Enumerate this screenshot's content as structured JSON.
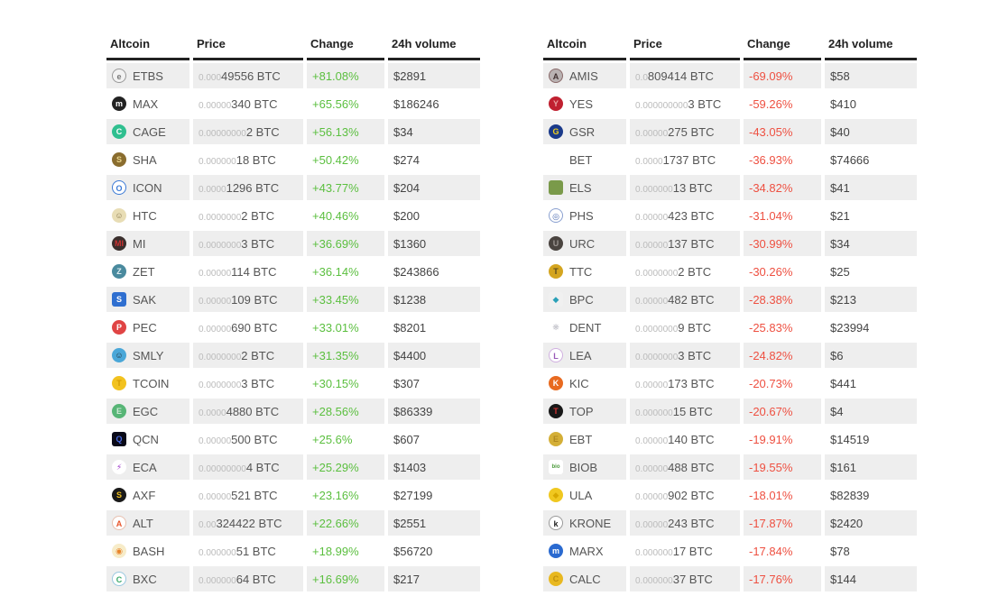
{
  "colors": {
    "positive": "#5bbf3f",
    "negative": "#ee5041",
    "stripe": "#eeeeee",
    "header_border": "#222222",
    "price_prefix": "#bbbbbb",
    "text": "#555555"
  },
  "tables": [
    {
      "id": "gainers-table",
      "headers": [
        "Altcoin",
        "Price",
        "Change",
        "24h volume"
      ],
      "rows": [
        {
          "coin": "ETBS",
          "icon": {
            "letter": "e",
            "bg": "#f2f2f2",
            "fg": "#777777",
            "shape": "circle",
            "border": "#999999"
          },
          "price_prefix": "0.000",
          "price_main": "49556 BTC",
          "change": "+81.08%",
          "direction": "up",
          "volume": "$2891"
        },
        {
          "coin": "MAX",
          "icon": {
            "letter": "m",
            "bg": "#222222",
            "fg": "#ffffff",
            "shape": "circle"
          },
          "price_prefix": "0.00000",
          "price_main": "340 BTC",
          "change": "+65.56%",
          "direction": "up",
          "volume": "$186246"
        },
        {
          "coin": "CAGE",
          "icon": {
            "letter": "C",
            "bg": "#2fbf8f",
            "fg": "#ffffff",
            "shape": "circle"
          },
          "price_prefix": "0.00000000",
          "price_main": "2 BTC",
          "change": "+56.13%",
          "direction": "up",
          "volume": "$34"
        },
        {
          "coin": "SHA",
          "icon": {
            "letter": "S",
            "bg": "#8a6d2f",
            "fg": "#e8d48a",
            "shape": "circle"
          },
          "price_prefix": "0.000000",
          "price_main": "18 BTC",
          "change": "+50.42%",
          "direction": "up",
          "volume": "$274"
        },
        {
          "coin": "ICON",
          "icon": {
            "letter": "O",
            "bg": "#ffffff",
            "fg": "#3b7ad6",
            "shape": "circle",
            "border": "#3b7ad6"
          },
          "price_prefix": "0.0000",
          "price_main": "1296 BTC",
          "change": "+43.77%",
          "direction": "up",
          "volume": "$204"
        },
        {
          "coin": "HTC",
          "icon": {
            "letter": "☺",
            "bg": "#e8ddb5",
            "fg": "#8a7a50",
            "shape": "circle"
          },
          "price_prefix": "0.0000000",
          "price_main": "2 BTC",
          "change": "+40.46%",
          "direction": "up",
          "volume": "$200"
        },
        {
          "coin": "MI",
          "icon": {
            "letter": "MI",
            "bg": "#3a2f2d",
            "fg": "#cc3333",
            "shape": "circle"
          },
          "price_prefix": "0.0000000",
          "price_main": "3 BTC",
          "change": "+36.69%",
          "direction": "up",
          "volume": "$1360"
        },
        {
          "coin": "ZET",
          "icon": {
            "letter": "Z",
            "bg": "#4a8a9e",
            "fg": "#dfeef2",
            "shape": "circle"
          },
          "price_prefix": "0.00000",
          "price_main": "114 BTC",
          "change": "+36.14%",
          "direction": "up",
          "volume": "$243866"
        },
        {
          "coin": "SAK",
          "icon": {
            "letter": "S",
            "bg": "#2f6fd0",
            "fg": "#ffffff",
            "shape": "square"
          },
          "price_prefix": "0.00000",
          "price_main": "109 BTC",
          "change": "+33.45%",
          "direction": "up",
          "volume": "$1238"
        },
        {
          "coin": "PEC",
          "icon": {
            "letter": "P",
            "bg": "#e04444",
            "fg": "#ffffff",
            "shape": "circle"
          },
          "price_prefix": "0.00000",
          "price_main": "690 BTC",
          "change": "+33.01%",
          "direction": "up",
          "volume": "$8201"
        },
        {
          "coin": "SMLY",
          "icon": {
            "letter": "☺",
            "bg": "#4aa7d8",
            "fg": "#22303a",
            "shape": "circle"
          },
          "price_prefix": "0.0000000",
          "price_main": "2 BTC",
          "change": "+31.35%",
          "direction": "up",
          "volume": "$4400"
        },
        {
          "coin": "TCOIN",
          "icon": {
            "letter": "T",
            "bg": "#f2c21f",
            "fg": "#d49a00",
            "shape": "circle"
          },
          "price_prefix": "0.0000000",
          "price_main": "3 BTC",
          "change": "+30.15%",
          "direction": "up",
          "volume": "$307"
        },
        {
          "coin": "EGC",
          "icon": {
            "letter": "E",
            "bg": "#57b576",
            "fg": "#cfe9d6",
            "shape": "circle"
          },
          "price_prefix": "0.0000",
          "price_main": "4880 BTC",
          "change": "+28.56%",
          "direction": "up",
          "volume": "$86339"
        },
        {
          "coin": "QCN",
          "icon": {
            "letter": "Q",
            "bg": "#0a0a18",
            "fg": "#4a6ae0",
            "shape": "square"
          },
          "price_prefix": "0.00000",
          "price_main": "500 BTC",
          "change": "+25.6%",
          "direction": "up",
          "volume": "$607"
        },
        {
          "coin": "ECA",
          "icon": {
            "letter": "⚡",
            "bg": "#ffffff",
            "fg": "#9b30c8",
            "shape": "circle"
          },
          "price_prefix": "0.00000000",
          "price_main": "4 BTC",
          "change": "+25.29%",
          "direction": "up",
          "volume": "$1403"
        },
        {
          "coin": "AXF",
          "icon": {
            "letter": "S",
            "bg": "#1a1a1a",
            "fg": "#f0c020",
            "shape": "circle"
          },
          "price_prefix": "0.00000",
          "price_main": "521 BTC",
          "change": "+23.16%",
          "direction": "up",
          "volume": "$27199"
        },
        {
          "coin": "ALT",
          "icon": {
            "letter": "A",
            "bg": "#ffffff",
            "fg": "#e8542a",
            "shape": "circle",
            "border": "#e8c0b0"
          },
          "price_prefix": "0.00",
          "price_main": "324422 BTC",
          "change": "+22.66%",
          "direction": "up",
          "volume": "$2551"
        },
        {
          "coin": "BASH",
          "icon": {
            "letter": "◉",
            "bg": "#f7ecc9",
            "fg": "#e8842a",
            "shape": "circle"
          },
          "price_prefix": "0.000000",
          "price_main": "51 BTC",
          "change": "+18.99%",
          "direction": "up",
          "volume": "$56720"
        },
        {
          "coin": "BXC",
          "icon": {
            "letter": "C",
            "bg": "#ffffff",
            "fg": "#3aa86a",
            "shape": "circle",
            "border": "#9ac8e0"
          },
          "price_prefix": "0.000000",
          "price_main": "64 BTC",
          "change": "+16.69%",
          "direction": "up",
          "volume": "$217"
        }
      ]
    },
    {
      "id": "losers-table",
      "headers": [
        "Altcoin",
        "Price",
        "Change",
        "24h volume"
      ],
      "rows": [
        {
          "coin": "AMIS",
          "icon": {
            "letter": "A",
            "bg": "#b9b2b2",
            "fg": "#403030",
            "shape": "circle",
            "border": "#8a6a6a"
          },
          "price_prefix": "0.0",
          "price_main": "809414 BTC",
          "change": "-69.09%",
          "direction": "down",
          "volume": "$58"
        },
        {
          "coin": "YES",
          "icon": {
            "letter": "Y",
            "bg": "#c02030",
            "fg": "#e8a0a0",
            "shape": "circle"
          },
          "price_prefix": "0.000000000",
          "price_main": "3 BTC",
          "change": "-59.26%",
          "direction": "down",
          "volume": "$410"
        },
        {
          "coin": "GSR",
          "icon": {
            "letter": "G",
            "bg": "#1a3a8a",
            "fg": "#f0d020",
            "shape": "circle"
          },
          "price_prefix": "0.00000",
          "price_main": "275 BTC",
          "change": "-43.05%",
          "direction": "down",
          "volume": "$40"
        },
        {
          "coin": "BET",
          "icon": null,
          "price_prefix": "0.0000",
          "price_main": "1737 BTC",
          "change": "-36.93%",
          "direction": "down",
          "volume": "$74666"
        },
        {
          "coin": "ELS",
          "icon": {
            "letter": "",
            "bg": "#7a9a4a",
            "fg": "#e0e8d0",
            "shape": "square"
          },
          "price_prefix": "0.000000",
          "price_main": "13 BTC",
          "change": "-34.82%",
          "direction": "down",
          "volume": "$41"
        },
        {
          "coin": "PHS",
          "icon": {
            "letter": "◎",
            "bg": "#ffffff",
            "fg": "#4a6ab0",
            "shape": "circle",
            "border": "#8aa0d0"
          },
          "price_prefix": "0.00000",
          "price_main": "423 BTC",
          "change": "-31.04%",
          "direction": "down",
          "volume": "$21"
        },
        {
          "coin": "URC",
          "icon": {
            "letter": "U",
            "bg": "#4a4440",
            "fg": "#9a9490",
            "shape": "circle"
          },
          "price_prefix": "0.00000",
          "price_main": "137 BTC",
          "change": "-30.99%",
          "direction": "down",
          "volume": "$34"
        },
        {
          "coin": "TTC",
          "icon": {
            "letter": "T",
            "bg": "#d4a520",
            "fg": "#5a4a20",
            "shape": "circle"
          },
          "price_prefix": "0.0000000",
          "price_main": "2 BTC",
          "change": "-30.26%",
          "direction": "down",
          "volume": "$25"
        },
        {
          "coin": "BPC",
          "icon": {
            "letter": "◆",
            "bg": "#f0f0f0",
            "fg": "#2aa0b8",
            "shape": "square"
          },
          "price_prefix": "0.00000",
          "price_main": "482 BTC",
          "change": "-28.38%",
          "direction": "down",
          "volume": "$213"
        },
        {
          "coin": "DENT",
          "icon": {
            "letter": "❋",
            "bg": "#ffffff",
            "fg": "#c0c0c8",
            "shape": "circle"
          },
          "price_prefix": "0.0000000",
          "price_main": "9 BTC",
          "change": "-25.83%",
          "direction": "down",
          "volume": "$23994"
        },
        {
          "coin": "LEA",
          "icon": {
            "letter": "L",
            "bg": "#ffffff",
            "fg": "#9a5ab8",
            "shape": "circle",
            "border": "#d0b0e0"
          },
          "price_prefix": "0.0000000",
          "price_main": "3 BTC",
          "change": "-24.82%",
          "direction": "down",
          "volume": "$6"
        },
        {
          "coin": "KIC",
          "icon": {
            "letter": "K",
            "bg": "#e86a20",
            "fg": "#ffffff",
            "shape": "circle"
          },
          "price_prefix": "0.00000",
          "price_main": "173 BTC",
          "change": "-20.73%",
          "direction": "down",
          "volume": "$441"
        },
        {
          "coin": "TOP",
          "icon": {
            "letter": "T",
            "bg": "#181818",
            "fg": "#d03030",
            "shape": "circle"
          },
          "price_prefix": "0.000000",
          "price_main": "15 BTC",
          "change": "-20.67%",
          "direction": "down",
          "volume": "$4"
        },
        {
          "coin": "EBT",
          "icon": {
            "letter": "E",
            "bg": "#d4af37",
            "fg": "#b08820",
            "shape": "circle"
          },
          "price_prefix": "0.00000",
          "price_main": "140 BTC",
          "change": "-19.91%",
          "direction": "down",
          "volume": "$14519"
        },
        {
          "coin": "BIOB",
          "icon": {
            "letter": "bio",
            "bg": "#ffffff",
            "fg": "#4a9a3a",
            "shape": "square"
          },
          "price_prefix": "0.00000",
          "price_main": "488 BTC",
          "change": "-19.55%",
          "direction": "down",
          "volume": "$161"
        },
        {
          "coin": "ULA",
          "icon": {
            "letter": "◆",
            "bg": "#f0c820",
            "fg": "#d8a800",
            "shape": "circle"
          },
          "price_prefix": "0.00000",
          "price_main": "902 BTC",
          "change": "-18.01%",
          "direction": "down",
          "volume": "$82839"
        },
        {
          "coin": "KRONE",
          "icon": {
            "letter": "k",
            "bg": "#ffffff",
            "fg": "#222222",
            "shape": "circle",
            "border": "#999999"
          },
          "price_prefix": "0.00000",
          "price_main": "243 BTC",
          "change": "-17.87%",
          "direction": "down",
          "volume": "$2420"
        },
        {
          "coin": "MARX",
          "icon": {
            "letter": "m",
            "bg": "#2a6ad0",
            "fg": "#ffffff",
            "shape": "circle"
          },
          "price_prefix": "0.000000",
          "price_main": "17 BTC",
          "change": "-17.84%",
          "direction": "down",
          "volume": "$78"
        },
        {
          "coin": "CALC",
          "icon": {
            "letter": "C",
            "bg": "#e8b820",
            "fg": "#c09010",
            "shape": "circle"
          },
          "price_prefix": "0.000000",
          "price_main": "37 BTC",
          "change": "-17.76%",
          "direction": "down",
          "volume": "$144"
        }
      ]
    }
  ]
}
